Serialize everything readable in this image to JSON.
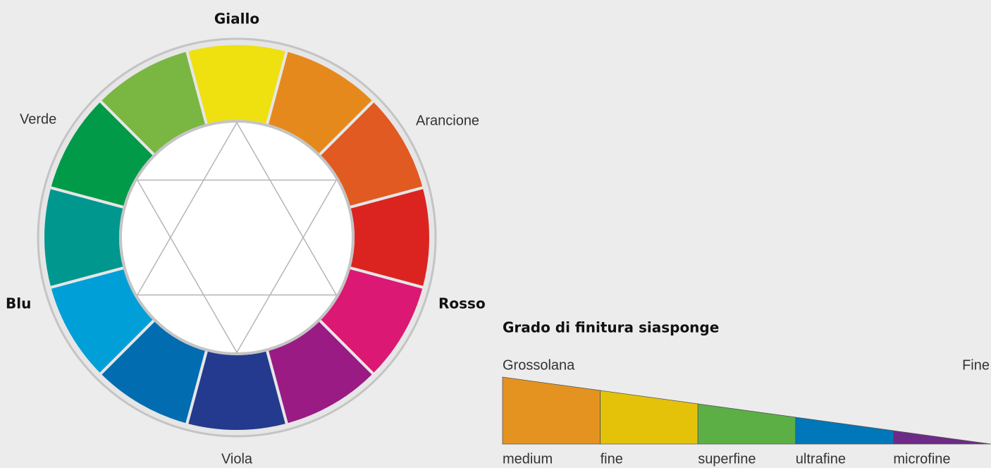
{
  "wheel": {
    "labels": {
      "top": "Giallo",
      "upper_right": "Arancione",
      "right": "Rosso",
      "bottom": "Viola",
      "left": "Blu",
      "upper_left": "Verde"
    },
    "segment_colors": [
      "#eee10f",
      "#e5891d",
      "#e05a22",
      "#db2420",
      "#db1873",
      "#9a1b84",
      "#243a8e",
      "#016cb0",
      "#009fd8",
      "#00978e",
      "#009a48",
      "#7ab642"
    ]
  },
  "scale": {
    "title": "Grado di finitura siasponge",
    "left_label": "Grossolana",
    "right_label": "Fine",
    "grades": [
      {
        "name": "medium",
        "color": "#e59320"
      },
      {
        "name": "fine",
        "color": "#e5c20a"
      },
      {
        "name": "superfine",
        "color": "#5baf45"
      },
      {
        "name": "ultrafine",
        "color": "#0077b8"
      },
      {
        "name": "microfine",
        "color": "#6e2a87"
      }
    ]
  }
}
